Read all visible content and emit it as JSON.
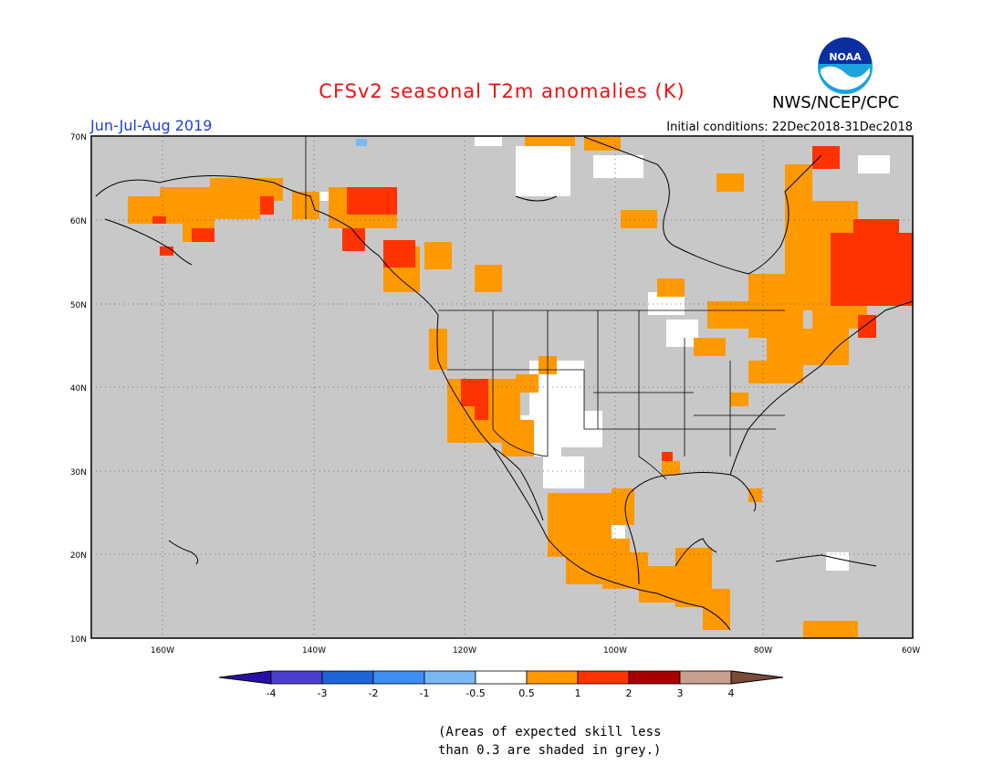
{
  "title": "CFSv2 seasonal T2m anomalies (K)",
  "agency": "NWS/NCEP/CPC",
  "logo_text": "NOAA",
  "period": "Jun-Jul-Aug 2019",
  "initial_conditions": "Initial conditions: 22Dec2018-31Dec2018",
  "lat_labels": [
    "70N",
    "60N",
    "50N",
    "40N",
    "30N",
    "20N",
    "10N"
  ],
  "lon_labels": [
    "160W",
    "140W",
    "120W",
    "100W",
    "80W",
    "60W"
  ],
  "colorbar": {
    "labels": [
      "-4",
      "-3",
      "-2",
      "-1",
      "-0.5",
      "0.5",
      "1",
      "2",
      "3",
      "4"
    ],
    "colors": [
      "#2a0fa6",
      "#4a3fd0",
      "#1e64d8",
      "#3d8ef0",
      "#7ab8f5",
      "#ffffff",
      "#ff9900",
      "#ff3300",
      "#a60000",
      "#c8a090",
      "#7a4a3a"
    ]
  },
  "colors": {
    "land_masked": "#c8c8c8",
    "map_frame": "#000000",
    "coast": "#000000",
    "title_red": "#ee1111",
    "period_blue": "#1f3fd6"
  },
  "note_lines": [
    "(Areas of expected skill less",
    "than 0.3 are shaded in grey.)"
  ]
}
